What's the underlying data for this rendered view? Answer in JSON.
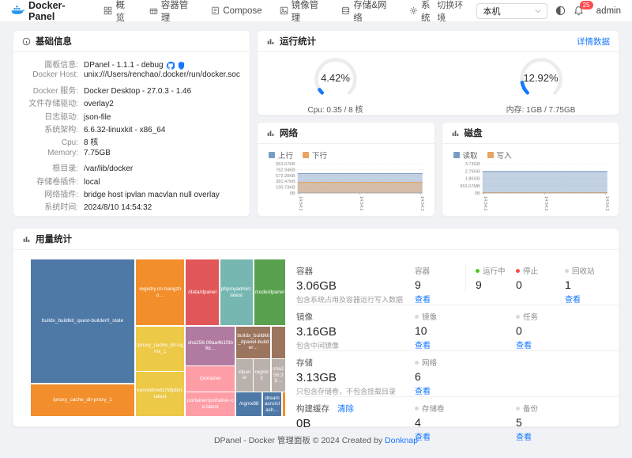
{
  "navbar": {
    "brand": "Docker-Panel",
    "menu": [
      {
        "label": "概览",
        "icon": "overview-icon"
      },
      {
        "label": "容器管理",
        "icon": "container-icon"
      },
      {
        "label": "Compose",
        "icon": "compose-icon"
      },
      {
        "label": "镜像管理",
        "icon": "image-icon"
      },
      {
        "label": "存储&网络",
        "icon": "storage-network-icon"
      },
      {
        "label": "系统",
        "icon": "system-icon"
      }
    ],
    "env_label": "切换环境",
    "env_value": "本机",
    "notification_count": "25",
    "user": "admin"
  },
  "basic": {
    "title": "基础信息",
    "rows": [
      {
        "label": "面板信息",
        "value": "DPanel - 1.1.1 - debug",
        "icons": [
          "github-icon",
          "shield-icon"
        ]
      },
      {
        "label": "Docker Host",
        "value": "unix:///Users/renchao/.docker/run/docker.sock"
      },
      {
        "label": "Docker 服务",
        "value": "Docker Desktop - 27.0.3 - 1.46"
      },
      {
        "label": "文件存储驱动",
        "value": "overlay2"
      },
      {
        "label": "日志驱动",
        "value": "json-file"
      },
      {
        "label": "系统架构",
        "value": "6.6.32-linuxkit - x86_64"
      },
      {
        "label": "Cpu",
        "value": "8 核"
      },
      {
        "label": "Memory",
        "value": "7.75GB"
      },
      {
        "label": "根目录",
        "value": "/var/lib/docker"
      },
      {
        "label": "存储卷插件",
        "value": "local"
      },
      {
        "label": "网络插件",
        "value": "bridge host ipvlan macvlan null overlay"
      },
      {
        "label": "系统时间",
        "value": "2024/8/10 14:54:32"
      }
    ]
  },
  "runstats": {
    "title": "运行统计",
    "detail_link": "详情数据"
  },
  "chart_data": [
    {
      "type": "gauge",
      "title": "运行统计",
      "gauges": [
        {
          "percent": 4.42,
          "percent_text": "4.42%",
          "label": "Cpu: 0.35 / 8 核",
          "color": "#1677ff",
          "track": "#ececec"
        },
        {
          "percent": 12.92,
          "percent_text": "12.92%",
          "label": "内存: 1GB / 7.75GB",
          "color": "#1677ff",
          "track": "#ececec"
        }
      ]
    },
    {
      "type": "area",
      "title": "网络",
      "legend": [
        {
          "name": "上行",
          "color": "#7a9cc2"
        },
        {
          "name": "下行",
          "color": "#e8a361"
        }
      ],
      "x": [
        "14:54:25",
        "14:54:28",
        "14:54:31"
      ],
      "yticks": [
        "953.67KB",
        "762.94KB",
        "572.20KB",
        "381.47KB",
        "190.73KB",
        "0B"
      ],
      "ymax": 953.67,
      "unit": "KB",
      "series": [
        {
          "name": "上行",
          "value": 630
        },
        {
          "name": "下行",
          "value": 345
        }
      ]
    },
    {
      "type": "area",
      "title": "磁盘",
      "legend": [
        {
          "name": "读取",
          "color": "#7a9cc2"
        },
        {
          "name": "写入",
          "color": "#e8a361"
        }
      ],
      "x": [
        "14:54:25",
        "14:54:28",
        "14:54:31"
      ],
      "yticks": [
        "3.73GB",
        "2.79GB",
        "1.86GB",
        "953.67MB",
        "0B"
      ],
      "ymax": 3.73,
      "unit": "GB",
      "series": [
        {
          "name": "读取",
          "value": 2.75
        },
        {
          "name": "写入",
          "value": 0.04
        }
      ]
    },
    {
      "type": "treemap",
      "title": "用量统计",
      "cells": [
        {
          "label": "buildx_buildkit_quest-builder0_state",
          "color": "#4e79a7",
          "x": 0,
          "y": 0,
          "w": 40.7,
          "h": 79
        },
        {
          "label": "/proxy_cache_dir-proxy_1",
          "color": "#f28e2b",
          "x": 0,
          "y": 79.6,
          "w": 40.7,
          "h": 20.4
        },
        {
          "label": "registry.cn-hangzho…",
          "color": "#f28e2b",
          "x": 41.3,
          "y": 0,
          "w": 19.1,
          "h": 42
        },
        {
          "label": "/data/dpanel",
          "color": "#e15759",
          "x": 61,
          "y": 0,
          "w": 12.8,
          "h": 42
        },
        {
          "label": "phpmyadmin:latest",
          "color": "#76b7b2",
          "x": 74.4,
          "y": 0,
          "w": 12.8,
          "h": 42
        },
        {
          "label": "/code/dpanel",
          "color": "#59a14f",
          "x": 87.8,
          "y": 0,
          "w": 12.2,
          "h": 42
        },
        {
          "label": "/proxy_cache_dir-nginx_1",
          "color": "#edc948",
          "x": 41.3,
          "y": 42.8,
          "w": 19.1,
          "h": 28.2
        },
        {
          "label": "kennethreitz/httpbin:latest",
          "color": "#edc948",
          "x": 41.3,
          "y": 71.6,
          "w": 19.1,
          "h": 28.4
        },
        {
          "label": "sha256:09aa4b1f3b9d…",
          "color": "#b07aa1",
          "x": 61,
          "y": 42.8,
          "w": 19.2,
          "h": 24.7
        },
        {
          "label": "/portainer",
          "color": "#ff9da7",
          "x": 61,
          "y": 68.1,
          "w": 19.2,
          "h": 16.2
        },
        {
          "label": "portainer/portainer-ce:latest",
          "color": "#ff9da7",
          "x": 61,
          "y": 84.8,
          "w": 19.2,
          "h": 15.2
        },
        {
          "label": "buildx_buildkit_dpanel-builder…",
          "color": "#9c755f",
          "x": 80.8,
          "y": 42.8,
          "w": 13.4,
          "h": 20.2
        },
        {
          "label": "",
          "color": "#9c755f",
          "x": 94.6,
          "y": 42.8,
          "w": 5.4,
          "h": 20.2
        },
        {
          "label": "/dpanel",
          "color": "#bab0ac",
          "x": 80.8,
          "y": 63.6,
          "w": 6.4,
          "h": 20.6
        },
        {
          "label": "registry",
          "color": "#bab0ac",
          "x": 87.6,
          "y": 63.6,
          "w": 6.4,
          "h": 20.6
        },
        {
          "label": "sha256:39…",
          "color": "#bab0ac",
          "x": 94.6,
          "y": 63.6,
          "w": 5.4,
          "h": 20.6
        },
        {
          "label": "/nginx88",
          "color": "#4e79a7",
          "x": 80.8,
          "y": 84.8,
          "w": 10,
          "h": 15.2
        },
        {
          "label": "dreamacro/clash…",
          "color": "#4e79a7",
          "x": 91.2,
          "y": 84.8,
          "w": 7.4,
          "h": 15.2
        },
        {
          "label": "",
          "color": "#f28e2b",
          "x": 99,
          "y": 84.8,
          "w": 1,
          "h": 15.2
        }
      ]
    }
  ],
  "usage": {
    "title": "用量统计",
    "rows": [
      {
        "main": {
          "title": "容器",
          "value": "3.06GB",
          "desc": "包含系统占用及容器运行写入数据"
        },
        "cols": [
          {
            "dot": null,
            "label": "容器",
            "value": "9",
            "link": "查看"
          },
          {
            "dot": "#52c41a",
            "label": "运行中",
            "value": "9",
            "link": null
          },
          {
            "dot": "#ff4d4f",
            "label": "停止",
            "value": "0",
            "link": null
          },
          {
            "dot": "#d9d9d9",
            "label": "回收站",
            "value": "1",
            "link": "查看"
          }
        ]
      },
      {
        "main": {
          "title": "镜像",
          "value": "3.16GB",
          "desc": "包含中间镜像"
        },
        "cols": [
          {
            "dot": "#d9d9d9",
            "label": "镜像",
            "value": "10",
            "link": "查看"
          },
          null,
          {
            "dot": "#d9d9d9",
            "label": "任务",
            "value": "0",
            "link": "查看"
          },
          null
        ]
      },
      {
        "main": {
          "title": "存储",
          "value": "3.13GB",
          "desc": "只包含存储卷，不包含挂载目录"
        },
        "cols": [
          {
            "dot": "#d9d9d9",
            "label": "网络",
            "value": "6",
            "link": "查看"
          },
          null,
          null,
          null
        ]
      },
      {
        "main": {
          "title": "构建缓存",
          "action": "清除",
          "value": "0B",
          "desc": ""
        },
        "cols": [
          {
            "dot": "#d9d9d9",
            "label": "存储卷",
            "value": "4",
            "link": "查看"
          },
          null,
          {
            "dot": "#d9d9d9",
            "label": "备份",
            "value": "5",
            "link": "查看"
          },
          null
        ]
      }
    ]
  },
  "footer": {
    "text": "DPanel - Docker 管理面板 © 2024 Created by ",
    "link": "Donknap"
  },
  "colors": {
    "accent": "#1677ff",
    "docker_blue": "#2496ed",
    "badge": "#ff4d4f"
  }
}
